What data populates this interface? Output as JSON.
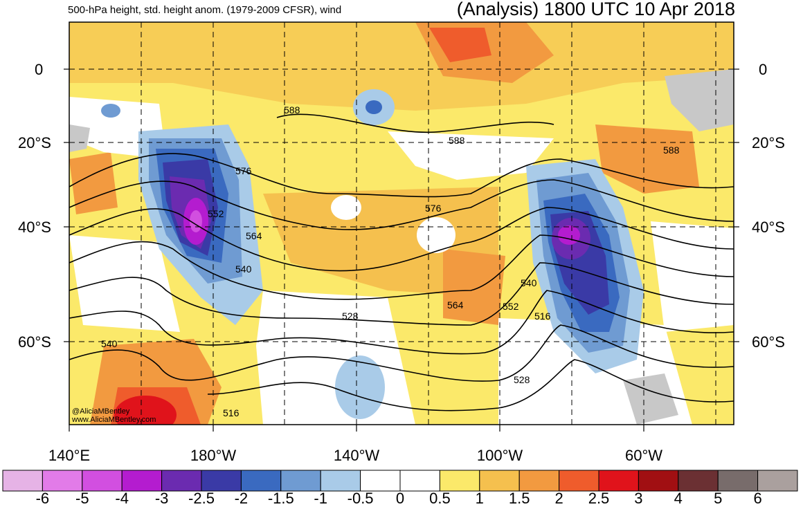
{
  "header": {
    "left_title": "500-hPa height, std. height anom. (1979-2009 CFSR), wind",
    "right_title": "(Analysis) 1800 UTC 10 Apr 2018"
  },
  "credit": {
    "handle": "@AliciaMBentley",
    "site": "www.AliciaMBentley.com"
  },
  "lat_labels": [
    "0",
    "20°S",
    "40°S",
    "60°S"
  ],
  "lon_labels": [
    "140°E",
    "180°W",
    "140°W",
    "100°W",
    "60°W"
  ],
  "contour_labels": [
    "588",
    "588",
    "588",
    "576",
    "576",
    "552",
    "564",
    "540",
    "540",
    "528",
    "564",
    "552",
    "540",
    "516",
    "528",
    "516"
  ],
  "colorbar": {
    "labels": [
      "-6",
      "-5",
      "-4",
      "-3",
      "-2.5",
      "-2",
      "-1.5",
      "-1",
      "-0.5",
      "0",
      "0.5",
      "1",
      "1.5",
      "2",
      "2.5",
      "3",
      "4",
      "5",
      "6"
    ],
    "colors": [
      "#e6b3e6",
      "#e27be8",
      "#d24fe0",
      "#b41ccf",
      "#6b2bb0",
      "#3a3aa6",
      "#3a6ac0",
      "#6f9bd2",
      "#a9cbe8",
      "#ffffff",
      "#ffffff",
      "#fbe96a",
      "#f5c04e",
      "#f29a40",
      "#ef5c2c",
      "#e0131b",
      "#a10f12",
      "#6b3033",
      "#786c6b",
      "#aaa09e"
    ]
  },
  "palette": {
    "ocean_neutral": "#ffffff",
    "land_gray": "#c8c8c8",
    "contour": "#000000"
  }
}
